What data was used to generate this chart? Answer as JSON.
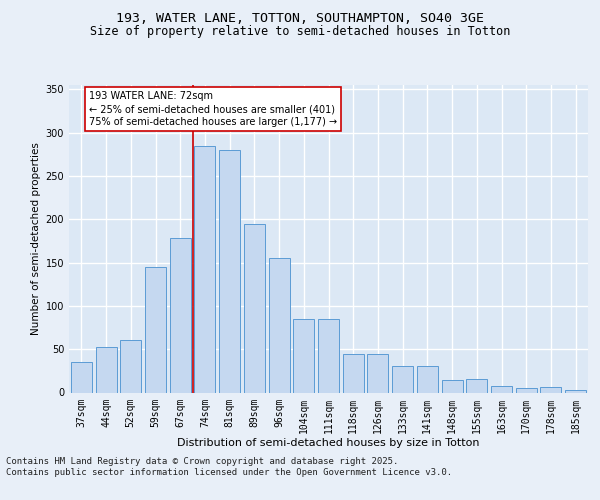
{
  "title1": "193, WATER LANE, TOTTON, SOUTHAMPTON, SO40 3GE",
  "title2": "Size of property relative to semi-detached houses in Totton",
  "xlabel": "Distribution of semi-detached houses by size in Totton",
  "ylabel": "Number of semi-detached properties",
  "categories": [
    "37sqm",
    "44sqm",
    "52sqm",
    "59sqm",
    "67sqm",
    "74sqm",
    "81sqm",
    "89sqm",
    "96sqm",
    "104sqm",
    "111sqm",
    "118sqm",
    "126sqm",
    "133sqm",
    "141sqm",
    "148sqm",
    "155sqm",
    "163sqm",
    "170sqm",
    "178sqm",
    "185sqm"
  ],
  "values": [
    35,
    52,
    61,
    145,
    178,
    285,
    280,
    195,
    155,
    85,
    85,
    45,
    45,
    31,
    31,
    14,
    16,
    8,
    5,
    6,
    3
  ],
  "bar_color": "#c5d8f0",
  "bar_edge_color": "#5b9bd5",
  "marker_line_color": "#cc0000",
  "annotation_box_edge_color": "#cc0000",
  "background_color": "#dce8f5",
  "plot_bg_color": "#dce8f5",
  "fig_bg_color": "#e8eff8",
  "grid_color": "#ffffff",
  "ylim": [
    0,
    355
  ],
  "yticks": [
    0,
    50,
    100,
    150,
    200,
    250,
    300,
    350
  ],
  "marker_label_line1": "193 WATER LANE: 72sqm",
  "marker_label_line2": "← 25% of semi-detached houses are smaller (401)",
  "marker_label_line3": "75% of semi-detached houses are larger (1,177) →",
  "footer": "Contains HM Land Registry data © Crown copyright and database right 2025.\nContains public sector information licensed under the Open Government Licence v3.0.",
  "title1_fontsize": 9.5,
  "title2_fontsize": 8.5,
  "xlabel_fontsize": 8,
  "ylabel_fontsize": 7.5,
  "tick_fontsize": 7,
  "annot_fontsize": 7,
  "footer_fontsize": 6.5
}
